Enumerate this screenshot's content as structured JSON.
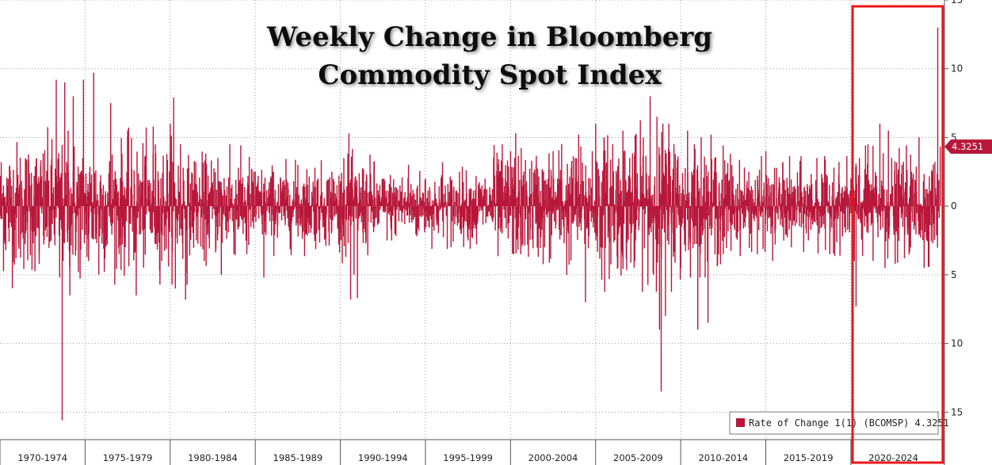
{
  "chart_data": {
    "type": "bar",
    "title_lines": [
      "Weekly Change in Bloomberg",
      "Commodity Spot Index"
    ],
    "xlabel": "",
    "ylabel": "",
    "ylim": [
      -17,
      15
    ],
    "y_ticks": [
      15,
      10,
      5,
      0,
      -5,
      -10,
      -15
    ],
    "y_tick_labels": [
      "15",
      "10",
      "5",
      "0",
      "5",
      "10",
      "15"
    ],
    "y_tick_labels_note": "negative ticks printed without minus sign on the original",
    "x_range": [
      1970,
      2025.5
    ],
    "x_ticks": [
      {
        "label": "1970-1974",
        "start": 1970,
        "end": 1975
      },
      {
        "label": "1975-1979",
        "start": 1975,
        "end": 1980
      },
      {
        "label": "1980-1984",
        "start": 1980,
        "end": 1985
      },
      {
        "label": "1985-1989",
        "start": 1985,
        "end": 1990
      },
      {
        "label": "1990-1994",
        "start": 1990,
        "end": 1995
      },
      {
        "label": "1995-1999",
        "start": 1995,
        "end": 2000
      },
      {
        "label": "2000-2004",
        "start": 2000,
        "end": 2005
      },
      {
        "label": "2005-2009",
        "start": 2005,
        "end": 2010
      },
      {
        "label": "2010-2014",
        "start": 2010,
        "end": 2015
      },
      {
        "label": "2015-2019",
        "start": 2015,
        "end": 2020
      },
      {
        "label": "2020-2024",
        "start": 2020,
        "end": 2025
      }
    ],
    "grid": true,
    "legend_position": "bottom-right",
    "series": [
      {
        "name": "Rate of Change 1(1) (BCOMSP)",
        "color": "#b8173a",
        "last_value": 4.3251,
        "last_value_label": "4.3251",
        "highlighted_window_years": [
          2020.1,
          2025.4
        ],
        "highlight_color": "#e8161b",
        "values_note": "weekly % change; representative samples read from the figure (x in years, y in percent)",
        "points": [
          [
            1970.2,
            1.5
          ],
          [
            1970.6,
            -1.2
          ],
          [
            1971.0,
            2.8
          ],
          [
            1971.5,
            -2.0
          ],
          [
            1972.0,
            2.2
          ],
          [
            1972.3,
            -4.2
          ],
          [
            1972.8,
            4.2
          ],
          [
            1973.0,
            -2.5
          ],
          [
            1973.3,
            9.2
          ],
          [
            1973.5,
            -5.2
          ],
          [
            1973.65,
            -15.6
          ],
          [
            1973.8,
            9.0
          ],
          [
            1974.0,
            5.5
          ],
          [
            1974.1,
            -6.5
          ],
          [
            1974.3,
            8.0
          ],
          [
            1974.6,
            -4.8
          ],
          [
            1974.9,
            9.2
          ],
          [
            1975.2,
            -4.0
          ],
          [
            1975.5,
            9.7
          ],
          [
            1975.8,
            -5.0
          ],
          [
            1976.5,
            7.5
          ],
          [
            1977.0,
            -3.5
          ],
          [
            1977.5,
            5.5
          ],
          [
            1978.0,
            -6.5
          ],
          [
            1978.5,
            3.0
          ],
          [
            1979.0,
            5.8
          ],
          [
            1979.5,
            -4.0
          ],
          [
            1980.0,
            6.0
          ],
          [
            1980.2,
            7.9
          ],
          [
            1980.3,
            -6.0
          ],
          [
            1980.6,
            4.5
          ],
          [
            1980.9,
            -6.8
          ],
          [
            1981.5,
            3.2
          ],
          [
            1982.0,
            -4.0
          ],
          [
            1982.8,
            3.5
          ],
          [
            1983.0,
            -5.0
          ],
          [
            1983.5,
            4.5
          ],
          [
            1984.0,
            2.8
          ],
          [
            1984.5,
            -3.5
          ],
          [
            1985.0,
            2.5
          ],
          [
            1985.5,
            -5.2
          ],
          [
            1986.0,
            2.5
          ],
          [
            1986.5,
            1.5
          ],
          [
            1987.0,
            -1.8
          ],
          [
            1987.5,
            3.0
          ],
          [
            1988.0,
            -2.0
          ],
          [
            1988.5,
            2.8
          ],
          [
            1989.0,
            -1.5
          ],
          [
            1989.5,
            2.5
          ],
          [
            1989.9,
            -2.8
          ],
          [
            1990.2,
            3.5
          ],
          [
            1990.5,
            5.3
          ],
          [
            1990.6,
            -6.8
          ],
          [
            1990.8,
            -5.0
          ],
          [
            1991.0,
            -6.7
          ],
          [
            1991.5,
            1.8
          ],
          [
            1992.0,
            -1.5
          ],
          [
            1992.5,
            2.0
          ],
          [
            1993.0,
            -1.8
          ],
          [
            1993.5,
            1.5
          ],
          [
            1994.0,
            3.0
          ],
          [
            1994.5,
            -2.2
          ],
          [
            1995.0,
            2.0
          ],
          [
            1995.5,
            -1.8
          ],
          [
            1996.0,
            3.2
          ],
          [
            1996.5,
            -3.0
          ],
          [
            1997.0,
            2.5
          ],
          [
            1997.5,
            -2.5
          ],
          [
            1998.0,
            -2.8
          ],
          [
            1998.5,
            2.0
          ],
          [
            1999.0,
            3.5
          ],
          [
            1999.5,
            -2.0
          ],
          [
            2000.0,
            4.0
          ],
          [
            2000.3,
            5.3
          ],
          [
            2000.6,
            -3.5
          ],
          [
            2001.0,
            -2.8
          ],
          [
            2001.5,
            3.0
          ],
          [
            2002.0,
            -3.0
          ],
          [
            2002.5,
            4.0
          ],
          [
            2003.0,
            4.5
          ],
          [
            2003.3,
            -5.0
          ],
          [
            2003.8,
            3.5
          ],
          [
            2004.0,
            5.2
          ],
          [
            2004.4,
            -7.0
          ],
          [
            2004.8,
            4.0
          ],
          [
            2005.0,
            6.0
          ],
          [
            2005.3,
            -3.0
          ],
          [
            2005.5,
            5.0
          ],
          [
            2006.0,
            4.5
          ],
          [
            2006.3,
            -4.5
          ],
          [
            2006.6,
            5.5
          ],
          [
            2007.0,
            3.5
          ],
          [
            2007.3,
            -4.0
          ],
          [
            2007.8,
            5.0
          ],
          [
            2008.2,
            8.0
          ],
          [
            2008.4,
            -5.0
          ],
          [
            2008.6,
            6.5
          ],
          [
            2008.75,
            -9.0
          ],
          [
            2008.85,
            -13.5
          ],
          [
            2008.95,
            6.0
          ],
          [
            2009.1,
            -8.0
          ],
          [
            2009.3,
            6.0
          ],
          [
            2009.6,
            4.5
          ],
          [
            2010.0,
            -4.5
          ],
          [
            2010.4,
            5.5
          ],
          [
            2010.8,
            4.5
          ],
          [
            2011.0,
            -9.0
          ],
          [
            2011.2,
            5.0
          ],
          [
            2011.6,
            -8.5
          ],
          [
            2012.0,
            3.5
          ],
          [
            2012.5,
            -3.5
          ],
          [
            2013.0,
            3.0
          ],
          [
            2013.5,
            -3.0
          ],
          [
            2014.0,
            2.5
          ],
          [
            2014.5,
            -3.5
          ],
          [
            2015.0,
            4.0
          ],
          [
            2015.4,
            -4.0
          ],
          [
            2016.0,
            3.2
          ],
          [
            2016.5,
            -3.0
          ],
          [
            2017.0,
            2.5
          ],
          [
            2017.5,
            -2.5
          ],
          [
            2018.0,
            3.5
          ],
          [
            2018.5,
            -3.2
          ],
          [
            2019.0,
            2.8
          ],
          [
            2019.5,
            -2.2
          ],
          [
            2020.0,
            2.0
          ],
          [
            2020.2,
            -4.0
          ],
          [
            2020.3,
            -7.3
          ],
          [
            2020.5,
            3.5
          ],
          [
            2021.0,
            4.5
          ],
          [
            2021.3,
            -4.0
          ],
          [
            2021.7,
            6.0
          ],
          [
            2022.0,
            -4.5
          ],
          [
            2022.2,
            5.5
          ],
          [
            2022.6,
            -4.2
          ],
          [
            2023.0,
            3.0
          ],
          [
            2023.5,
            -3.0
          ],
          [
            2024.0,
            5.0
          ],
          [
            2024.3,
            -4.5
          ],
          [
            2024.8,
            2.5
          ],
          [
            2025.1,
            13.0
          ],
          [
            2025.25,
            4.3251
          ]
        ]
      }
    ]
  }
}
